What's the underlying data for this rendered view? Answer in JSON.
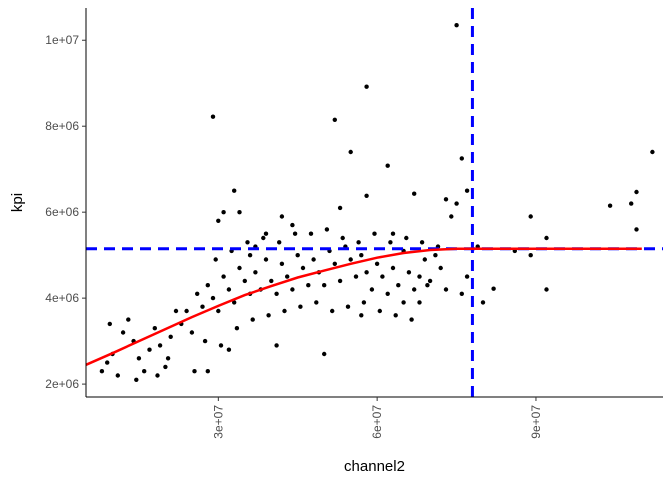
{
  "chart_data": {
    "type": "scatter",
    "xlabel": "channel2",
    "ylabel": "kpi",
    "xlim": [
      5000000,
      114000000
    ],
    "ylim": [
      1700000,
      10750000
    ],
    "x_ticks": [
      {
        "value": 30000000,
        "label": "3e+07"
      },
      {
        "value": 60000000,
        "label": "6e+07"
      },
      {
        "value": 90000000,
        "label": "9e+07"
      }
    ],
    "y_ticks": [
      {
        "value": 2000000,
        "label": "2e+06"
      },
      {
        "value": 4000000,
        "label": "4e+06"
      },
      {
        "value": 6000000,
        "label": "6e+06"
      },
      {
        "value": 8000000,
        "label": "8e+06"
      },
      {
        "value": 10000000,
        "label": "1e+07"
      }
    ],
    "grid": false,
    "reference_lines": [
      {
        "orientation": "horizontal",
        "value": 5150000,
        "color": "#0000ff",
        "style": "dashed"
      },
      {
        "orientation": "vertical",
        "value": 78000000,
        "color": "#0000ff",
        "style": "dashed"
      }
    ],
    "fit_curve": {
      "color": "#ff0000",
      "x": [
        5000000,
        10000000,
        15000000,
        20000000,
        25000000,
        30000000,
        35000000,
        40000000,
        45000000,
        50000000,
        55000000,
        60000000,
        65000000,
        70000000,
        75000000,
        78000000,
        85000000,
        95000000,
        105000000,
        110000000
      ],
      "y": [
        2450000,
        2720000,
        3000000,
        3280000,
        3560000,
        3820000,
        4070000,
        4280000,
        4480000,
        4640000,
        4800000,
        4940000,
        5050000,
        5120000,
        5150000,
        5150000,
        5150000,
        5150000,
        5150000,
        5150000
      ]
    },
    "point_color": "#000000",
    "points": [
      [
        33000000,
        6500000
      ],
      [
        31000000,
        6000000
      ],
      [
        34000000,
        6000000
      ],
      [
        29000000,
        8220000
      ],
      [
        52000000,
        8150000
      ],
      [
        58000000,
        8920000
      ],
      [
        55000000,
        7400000
      ],
      [
        75000000,
        10350000
      ],
      [
        76000000,
        7250000
      ],
      [
        67000000,
        6430000
      ],
      [
        62000000,
        7080000
      ],
      [
        58000000,
        6380000
      ],
      [
        53000000,
        6100000
      ],
      [
        82000000,
        4220000
      ],
      [
        75000000,
        6200000
      ],
      [
        77000000,
        6500000
      ],
      [
        74000000,
        5900000
      ],
      [
        73000000,
        6300000
      ],
      [
        112000000,
        7400000
      ],
      [
        109000000,
        6470000
      ],
      [
        108000000,
        6200000
      ],
      [
        104000000,
        6150000
      ],
      [
        109000000,
        5600000
      ],
      [
        89000000,
        5900000
      ],
      [
        92000000,
        5400000
      ],
      [
        89000000,
        5000000
      ],
      [
        92000000,
        4200000
      ],
      [
        86000000,
        5100000
      ],
      [
        79000000,
        5200000
      ],
      [
        76000000,
        4100000
      ],
      [
        80000000,
        3900000
      ],
      [
        77000000,
        4500000
      ],
      [
        73000000,
        4200000
      ],
      [
        68000000,
        3900000
      ],
      [
        65000000,
        5100000
      ],
      [
        63000000,
        5500000
      ],
      [
        57000000,
        3600000
      ],
      [
        50000000,
        2700000
      ],
      [
        41000000,
        2900000
      ],
      [
        28000000,
        2300000
      ],
      [
        32000000,
        2800000
      ],
      [
        30000000,
        5800000
      ],
      [
        42000000,
        5900000
      ],
      [
        44000000,
        5700000
      ],
      [
        37000000,
        5200000
      ],
      [
        36000000,
        5000000
      ],
      [
        39000000,
        5500000
      ],
      [
        8000000,
        2300000
      ],
      [
        9000000,
        2500000
      ],
      [
        10000000,
        2700000
      ],
      [
        12000000,
        3200000
      ],
      [
        13000000,
        3500000
      ],
      [
        14000000,
        3000000
      ],
      [
        15000000,
        2600000
      ],
      [
        16000000,
        2300000
      ],
      [
        17000000,
        2800000
      ],
      [
        18000000,
        3300000
      ],
      [
        19000000,
        2900000
      ],
      [
        20000000,
        2400000
      ],
      [
        21000000,
        3100000
      ],
      [
        22000000,
        3700000
      ],
      [
        9500000,
        3400000
      ],
      [
        11000000,
        2200000
      ],
      [
        14500000,
        2100000
      ],
      [
        18500000,
        2200000
      ],
      [
        20500000,
        2600000
      ],
      [
        23000000,
        3400000
      ],
      [
        24000000,
        3700000
      ],
      [
        25000000,
        3200000
      ],
      [
        26000000,
        4100000
      ],
      [
        27000000,
        3800000
      ],
      [
        28000000,
        4300000
      ],
      [
        29000000,
        4000000
      ],
      [
        30000000,
        3700000
      ],
      [
        31000000,
        4500000
      ],
      [
        32000000,
        4200000
      ],
      [
        33000000,
        3900000
      ],
      [
        34000000,
        4700000
      ],
      [
        35000000,
        4400000
      ],
      [
        36000000,
        4100000
      ],
      [
        37000000,
        4600000
      ],
      [
        38000000,
        4200000
      ],
      [
        39000000,
        4900000
      ],
      [
        40000000,
        4400000
      ],
      [
        41000000,
        4100000
      ],
      [
        42000000,
        4800000
      ],
      [
        43000000,
        4500000
      ],
      [
        44000000,
        4200000
      ],
      [
        45000000,
        5000000
      ],
      [
        46000000,
        4700000
      ],
      [
        47000000,
        4300000
      ],
      [
        48000000,
        4900000
      ],
      [
        49000000,
        4600000
      ],
      [
        50000000,
        4300000
      ],
      [
        51000000,
        5100000
      ],
      [
        52000000,
        4800000
      ],
      [
        53000000,
        4400000
      ],
      [
        54000000,
        5200000
      ],
      [
        55000000,
        4900000
      ],
      [
        56000000,
        4500000
      ],
      [
        57000000,
        5000000
      ],
      [
        58000000,
        4600000
      ],
      [
        59000000,
        4200000
      ],
      [
        60000000,
        4800000
      ],
      [
        61000000,
        4500000
      ],
      [
        62000000,
        4100000
      ],
      [
        63000000,
        4700000
      ],
      [
        64000000,
        4300000
      ],
      [
        65000000,
        3900000
      ],
      [
        66000000,
        4600000
      ],
      [
        67000000,
        4200000
      ],
      [
        68000000,
        4500000
      ],
      [
        69000000,
        4900000
      ],
      [
        70000000,
        4400000
      ],
      [
        71000000,
        5000000
      ],
      [
        72000000,
        4700000
      ],
      [
        25500000,
        2300000
      ],
      [
        27500000,
        3000000
      ],
      [
        30500000,
        2900000
      ],
      [
        33500000,
        3300000
      ],
      [
        36500000,
        3500000
      ],
      [
        39500000,
        3600000
      ],
      [
        42500000,
        3700000
      ],
      [
        45500000,
        3800000
      ],
      [
        48500000,
        3900000
      ],
      [
        51500000,
        3700000
      ],
      [
        54500000,
        3800000
      ],
      [
        57500000,
        3900000
      ],
      [
        60500000,
        3700000
      ],
      [
        63500000,
        3600000
      ],
      [
        66500000,
        3500000
      ],
      [
        69500000,
        4300000
      ],
      [
        47500000,
        5500000
      ],
      [
        50500000,
        5600000
      ],
      [
        53500000,
        5400000
      ],
      [
        56500000,
        5300000
      ],
      [
        59500000,
        5500000
      ],
      [
        62500000,
        5300000
      ],
      [
        65500000,
        5400000
      ],
      [
        68500000,
        5300000
      ],
      [
        71500000,
        5200000
      ],
      [
        44500000,
        5500000
      ],
      [
        41500000,
        5300000
      ],
      [
        38500000,
        5400000
      ],
      [
        35500000,
        5300000
      ],
      [
        32500000,
        5100000
      ],
      [
        29500000,
        4900000
      ]
    ]
  }
}
